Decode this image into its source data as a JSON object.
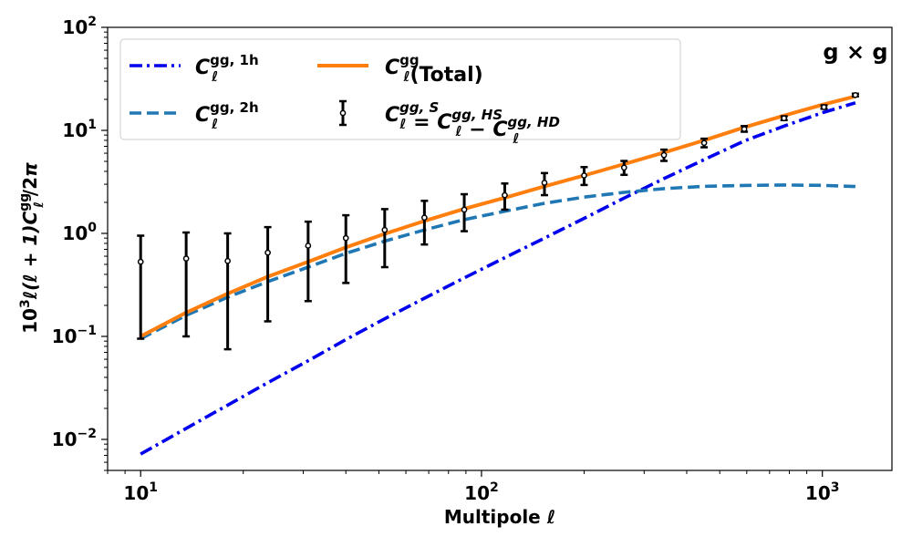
{
  "chart_data": {
    "type": "line",
    "xscale": "log",
    "yscale": "log",
    "xlim": [
      8,
      1600
    ],
    "ylim": [
      0.005,
      100
    ],
    "xlabel": "Multipole ℓ",
    "ylabel": "10³ ℓ(ℓ+1) C_ℓ^gg / 2π",
    "panel_label": "g × g",
    "x_major_ticks": [
      {
        "value": 10,
        "base": "10",
        "exp": "1"
      },
      {
        "value": 100,
        "base": "10",
        "exp": "2"
      },
      {
        "value": 1000,
        "base": "10",
        "exp": "3"
      }
    ],
    "y_major_ticks": [
      {
        "value": 0.01,
        "base": "10",
        "exp": "−2"
      },
      {
        "value": 0.1,
        "base": "10",
        "exp": "−1"
      },
      {
        "value": 1,
        "base": "10",
        "exp": "0"
      },
      {
        "value": 10,
        "base": "10",
        "exp": "1"
      },
      {
        "value": 100,
        "base": "10",
        "exp": "2"
      }
    ],
    "series": [
      {
        "name": "C_ℓ^{gg,1h}",
        "label_main": "C",
        "label_sup": "gg, 1h",
        "label_sub": "ℓ",
        "style": "dashdot",
        "color": "#0000ee",
        "x": [
          10,
          13.6,
          18,
          23.6,
          31,
          40,
          52,
          68,
          89,
          117,
          153,
          200,
          262,
          343,
          450,
          590,
          772,
          1011,
          1250
        ],
        "y": [
          0.0072,
          0.0128,
          0.0215,
          0.0355,
          0.058,
          0.093,
          0.148,
          0.235,
          0.37,
          0.58,
          0.9,
          1.4,
          2.2,
          3.4,
          5.2,
          7.9,
          11.0,
          15.0,
          18.5
        ]
      },
      {
        "name": "C_ℓ^{gg,2h}",
        "label_main": "C",
        "label_sup": "gg, 2h",
        "label_sub": "ℓ",
        "style": "dashed",
        "color": "#1f77b4",
        "x": [
          10,
          13.6,
          18,
          23.6,
          31,
          40,
          52,
          68,
          89,
          117,
          153,
          200,
          262,
          343,
          450,
          590,
          772,
          1011,
          1250
        ],
        "y": [
          0.095,
          0.16,
          0.24,
          0.34,
          0.47,
          0.64,
          0.84,
          1.08,
          1.36,
          1.64,
          1.96,
          2.25,
          2.5,
          2.72,
          2.86,
          2.92,
          2.95,
          2.92,
          2.85
        ]
      },
      {
        "name": "C_ℓ^{gg}(Total)",
        "label_main": "C",
        "label_sup": "gg",
        "label_sub": "ℓ",
        "label_suffix": "(Total)",
        "style": "solid",
        "color": "#ff7f0e",
        "x": [
          10,
          13.6,
          18,
          23.6,
          31,
          40,
          52,
          68,
          89,
          117,
          153,
          200,
          262,
          343,
          450,
          590,
          772,
          1011,
          1250
        ],
        "y": [
          0.1,
          0.17,
          0.26,
          0.38,
          0.53,
          0.73,
          0.99,
          1.32,
          1.73,
          2.22,
          2.86,
          3.65,
          4.7,
          6.1,
          8.0,
          10.7,
          13.9,
          17.9,
          21.4
        ]
      }
    ],
    "errorbar_series": {
      "name": "C_ℓ^{gg,S} = C_ℓ^{gg,HS} − C_ℓ^{gg,HD}",
      "color": "#000000",
      "x": [
        10,
        13.6,
        18,
        23.6,
        31,
        40,
        52,
        68,
        89,
        117,
        153,
        200,
        262,
        343,
        450,
        590,
        772,
        1011,
        1250
      ],
      "y": [
        0.53,
        0.57,
        0.54,
        0.65,
        0.76,
        0.9,
        1.08,
        1.42,
        1.7,
        2.35,
        3.1,
        3.65,
        4.35,
        5.75,
        7.55,
        10.3,
        13.1,
        16.8,
        22.0
      ],
      "y_low": [
        0.095,
        0.1,
        0.075,
        0.14,
        0.22,
        0.33,
        0.47,
        0.78,
        1.05,
        1.7,
        2.35,
        2.95,
        3.7,
        5.05,
        6.85,
        9.7,
        12.6,
        16.2,
        21.4
      ],
      "y_high": [
        0.95,
        1.02,
        1.0,
        1.15,
        1.3,
        1.5,
        1.72,
        2.07,
        2.4,
        3.05,
        3.85,
        4.4,
        5.05,
        6.5,
        8.3,
        11.0,
        13.7,
        17.5,
        22.7
      ]
    },
    "legend": {
      "placement": "upper-left",
      "columns": 2,
      "entries": [
        {
          "series": "C_ℓ^{gg,1h}",
          "main": "C",
          "sup": "gg, 1h",
          "sub": "ℓ",
          "suffix": ""
        },
        {
          "series": "C_ℓ^{gg}(Total)",
          "main": "C",
          "sup": "gg",
          "sub": "ℓ",
          "suffix": "(Total)"
        },
        {
          "series": "C_ℓ^{gg,2h}",
          "main": "C",
          "sup": "gg, 2h",
          "sub": "ℓ",
          "suffix": ""
        },
        {
          "series": "errorbar",
          "main": "C",
          "sup": "gg, S",
          "sub": "ℓ",
          "rest": [
            {
              "op": " = ",
              "main": "C",
              "sup": "gg, HS",
              "sub": "ℓ"
            },
            {
              "op": " − ",
              "main": "C",
              "sup": "gg, HD",
              "sub": "ℓ"
            }
          ]
        }
      ]
    }
  }
}
